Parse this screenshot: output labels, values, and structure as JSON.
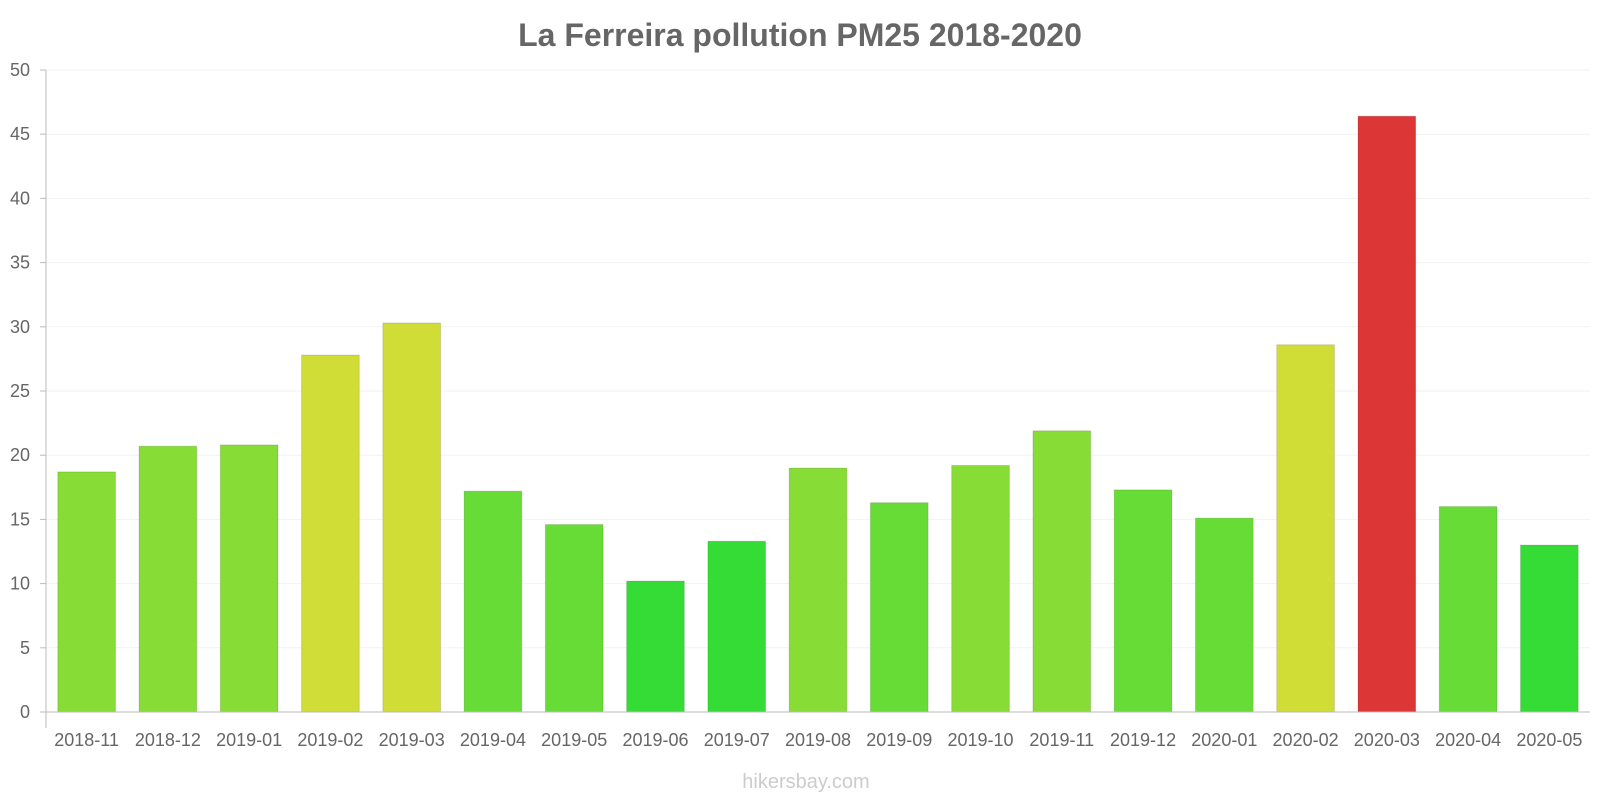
{
  "chart_data": {
    "type": "bar",
    "title": "La Ferreira pollution PM25 2018-2020",
    "xlabel": "",
    "ylabel": "",
    "ylim": [
      0,
      50
    ],
    "yticks": [
      0,
      5,
      10,
      15,
      20,
      25,
      30,
      35,
      40,
      45,
      50
    ],
    "grid": true,
    "categories": [
      "2018-11",
      "2018-12",
      "2019-01",
      "2019-02",
      "2019-03",
      "2019-04",
      "2019-05",
      "2019-06",
      "2019-07",
      "2019-08",
      "2019-09",
      "2019-10",
      "2019-11",
      "2019-12",
      "2020-01",
      "2020-02",
      "2020-03",
      "2020-04",
      "2020-05"
    ],
    "values": [
      18.7,
      20.7,
      20.8,
      27.8,
      30.3,
      17.2,
      14.6,
      10.2,
      13.3,
      19.0,
      16.3,
      19.2,
      21.9,
      17.3,
      15.1,
      28.6,
      46.4,
      16.0,
      13.0
    ],
    "colors": [
      "#87dc36",
      "#87dc36",
      "#87dc36",
      "#cfdd36",
      "#cfdd36",
      "#68dc36",
      "#68dc36",
      "#36dc36",
      "#36dc36",
      "#87dc36",
      "#68dc36",
      "#87dc36",
      "#87dc36",
      "#68dc36",
      "#68dc36",
      "#cfdd36",
      "#dc3636",
      "#68dc36",
      "#36dc36"
    ]
  },
  "watermark": "hikersbay.com"
}
